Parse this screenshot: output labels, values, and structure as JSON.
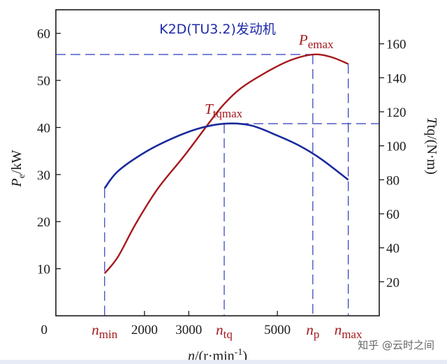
{
  "chart_data": {
    "type": "line",
    "title": "K2D(TU3.2)发动机",
    "x": {
      "ticks": [
        {
          "value": 0,
          "label": "0"
        },
        {
          "value": 2000,
          "label": "2000"
        },
        {
          "value": 3000,
          "label": "3000"
        },
        {
          "value": 5000,
          "label": "5000"
        }
      ],
      "special_ticks": [
        {
          "value": 1100,
          "main": "n",
          "sub": "min"
        },
        {
          "value": 3800,
          "main": "n",
          "sub": "tq"
        },
        {
          "value": 5800,
          "main": "n",
          "sub": "p"
        },
        {
          "value": 6600,
          "main": "n",
          "sub": "max"
        }
      ],
      "label_main": "n",
      "label_unit": "/(r·min",
      "label_exp": "-1",
      "label_close": ")",
      "range": [
        0,
        7300
      ]
    },
    "y_left": {
      "ticks": [
        10,
        20,
        30,
        40,
        50,
        60
      ],
      "label_main": "P",
      "label_sub": "e",
      "label_unit": "/kW",
      "range": [
        0,
        65
      ]
    },
    "y_right": {
      "ticks": [
        20,
        40,
        60,
        80,
        100,
        120,
        140,
        160
      ],
      "label_main": "T",
      "label_rest": "tq/(N·m)",
      "range": [
        0,
        180
      ]
    },
    "series": [
      {
        "id": "power",
        "axis": "left",
        "color": "#a5191e",
        "x": [
          1100,
          1400,
          1800,
          2300,
          2900,
          3500,
          3800,
          4200,
          4800,
          5300,
          5800,
          6200,
          6600
        ],
        "y": [
          9,
          12.5,
          19.5,
          27,
          34,
          41.5,
          45,
          48.5,
          52,
          54.3,
          55.5,
          55,
          53.5
        ]
      },
      {
        "id": "torque",
        "axis": "right",
        "color": "#1a2a9c",
        "x": [
          1100,
          1400,
          2000,
          2600,
          3200,
          3800,
          4400,
          5000,
          5500,
          6000,
          6600
        ],
        "y": [
          75,
          85,
          96,
          104,
          110,
          113,
          112,
          106,
          100,
          92,
          80
        ]
      }
    ],
    "annotations": [
      {
        "id": "pemax",
        "main": "P",
        "sub": "emax",
        "x": 5800,
        "y": 55.5,
        "axis": "left"
      },
      {
        "id": "ttqmax",
        "main": "T",
        "sub": "tqmax",
        "x": 3800,
        "y": 113,
        "axis": "right"
      }
    ],
    "grid": false
  },
  "watermark": "知乎 @云时之间",
  "colors": {
    "axis": "#1a1a1a",
    "guide": "#2b3bbd",
    "title": "#1f2aa8",
    "power": "#a5191e",
    "torque": "#1a2a9c"
  }
}
